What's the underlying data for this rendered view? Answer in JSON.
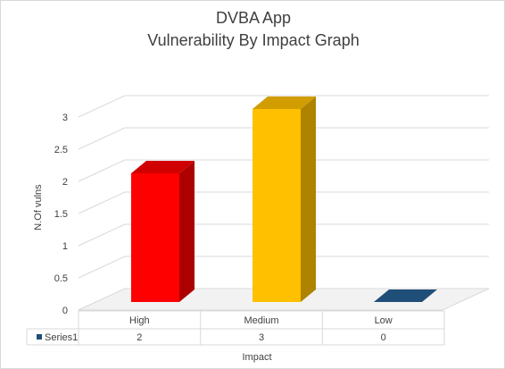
{
  "chart_data": {
    "type": "bar",
    "title": "DVBA App",
    "subtitle": "Vulnerability By Impact Graph",
    "xlabel": "Impact",
    "ylabel": "N.Of vulns",
    "categories": [
      "High",
      "Medium",
      "Low"
    ],
    "series": [
      {
        "name": "Series1",
        "values": [
          2,
          3,
          0
        ]
      }
    ],
    "bar_colors": [
      "#ff0000",
      "#ffc000",
      "#1f4e79"
    ],
    "ylim": [
      0,
      3
    ],
    "yticks": [
      "0",
      "0.5",
      "1",
      "1.5",
      "2",
      "2.5",
      "3"
    ],
    "grid": true,
    "data_table": true
  }
}
